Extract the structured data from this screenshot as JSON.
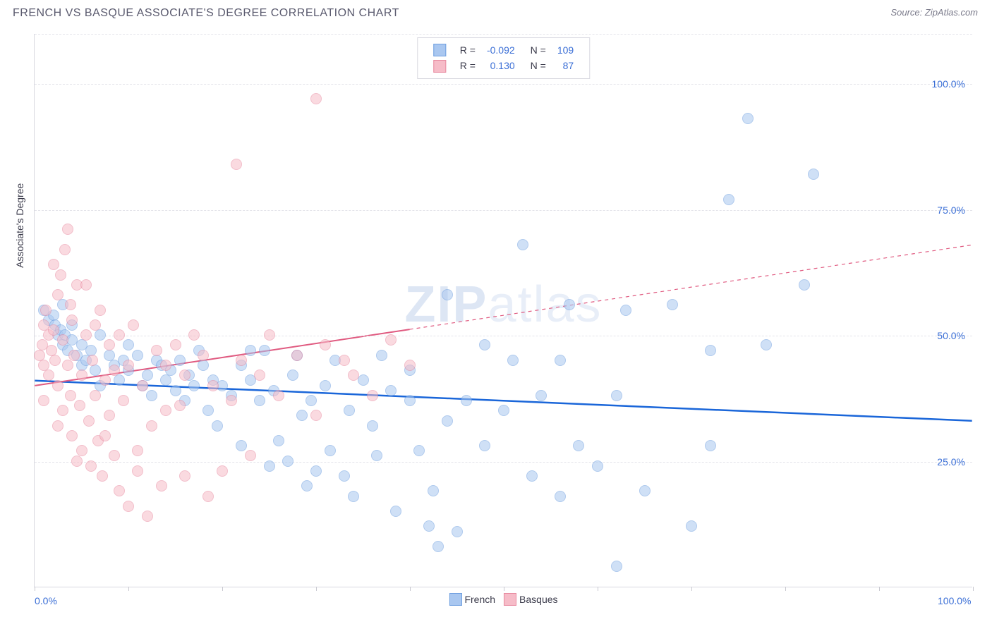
{
  "title": "FRENCH VS BASQUE ASSOCIATE'S DEGREE CORRELATION CHART",
  "source": "Source: ZipAtlas.com",
  "watermark": {
    "prefix": "ZIP",
    "suffix": "atlas"
  },
  "y_axis_title": "Associate's Degree",
  "chart": {
    "type": "scatter-with-regression",
    "xlim": [
      0,
      100
    ],
    "ylim": [
      0,
      110
    ],
    "x_ticks": [
      0,
      10,
      20,
      30,
      40,
      50,
      60,
      70,
      80,
      90,
      100
    ],
    "x_tick_labels": {
      "0": "0.0%",
      "100": "100.0%"
    },
    "y_ticks": [
      25,
      50,
      75,
      100
    ],
    "y_tick_labels": {
      "25": "25.0%",
      "50": "50.0%",
      "75": "75.0%",
      "100": "100.0%"
    },
    "background_color": "#ffffff",
    "grid_color": "#e4e4ea",
    "point_radius": 8,
    "point_opacity": 0.55,
    "series": [
      {
        "name": "French",
        "color_fill": "#a9c7f0",
        "color_stroke": "#6f9fe0",
        "trend_color": "#1a66d9",
        "trend_width": 2.5,
        "trend_dash": "none",
        "R": "-0.092",
        "N": "109",
        "trend": {
          "x1": 0,
          "y1": 41,
          "x2": 100,
          "y2": 33
        },
        "points": [
          [
            1,
            55
          ],
          [
            1.5,
            53
          ],
          [
            2,
            54
          ],
          [
            2.2,
            52
          ],
          [
            2.5,
            50
          ],
          [
            2.8,
            51
          ],
          [
            3,
            48
          ],
          [
            3,
            56
          ],
          [
            3.2,
            50
          ],
          [
            3.5,
            47
          ],
          [
            4,
            49
          ],
          [
            4,
            52
          ],
          [
            4.5,
            46
          ],
          [
            5,
            48
          ],
          [
            5,
            44
          ],
          [
            5.5,
            45
          ],
          [
            6,
            47
          ],
          [
            6.5,
            43
          ],
          [
            7,
            50
          ],
          [
            7,
            40
          ],
          [
            8,
            46
          ],
          [
            8.5,
            44
          ],
          [
            9,
            41
          ],
          [
            9.5,
            45
          ],
          [
            10,
            48
          ],
          [
            10,
            43
          ],
          [
            11,
            46
          ],
          [
            11.5,
            40
          ],
          [
            12,
            42
          ],
          [
            12.5,
            38
          ],
          [
            13,
            45
          ],
          [
            13.5,
            44
          ],
          [
            14,
            41
          ],
          [
            14.5,
            43
          ],
          [
            15,
            39
          ],
          [
            15.5,
            45
          ],
          [
            16,
            37
          ],
          [
            16.5,
            42
          ],
          [
            17,
            40
          ],
          [
            17.5,
            47
          ],
          [
            18,
            44
          ],
          [
            18.5,
            35
          ],
          [
            19,
            41
          ],
          [
            19.5,
            32
          ],
          [
            20,
            40
          ],
          [
            21,
            38
          ],
          [
            22,
            44
          ],
          [
            22,
            28
          ],
          [
            23,
            41
          ],
          [
            24,
            37
          ],
          [
            24.5,
            47
          ],
          [
            25,
            24
          ],
          [
            25.5,
            39
          ],
          [
            26,
            29
          ],
          [
            27,
            25
          ],
          [
            27.5,
            42
          ],
          [
            28,
            46
          ],
          [
            28.5,
            34
          ],
          [
            29,
            20
          ],
          [
            29.5,
            37
          ],
          [
            30,
            23
          ],
          [
            31,
            40
          ],
          [
            31.5,
            27
          ],
          [
            32,
            45
          ],
          [
            33,
            22
          ],
          [
            33.5,
            35
          ],
          [
            34,
            18
          ],
          [
            35,
            41
          ],
          [
            36,
            32
          ],
          [
            36.5,
            26
          ],
          [
            37,
            46
          ],
          [
            38,
            39
          ],
          [
            38.5,
            15
          ],
          [
            40,
            37
          ],
          [
            40,
            43
          ],
          [
            41,
            27
          ],
          [
            42,
            12
          ],
          [
            42.5,
            19
          ],
          [
            43,
            8
          ],
          [
            44,
            33
          ],
          [
            44,
            58
          ],
          [
            45,
            11
          ],
          [
            46,
            37
          ],
          [
            48,
            28
          ],
          [
            48,
            48
          ],
          [
            50,
            35
          ],
          [
            51,
            45
          ],
          [
            52,
            68
          ],
          [
            53,
            22
          ],
          [
            54,
            38
          ],
          [
            56,
            18
          ],
          [
            56,
            45
          ],
          [
            57,
            56
          ],
          [
            58,
            28
          ],
          [
            60,
            24
          ],
          [
            62,
            4
          ],
          [
            62,
            38
          ],
          [
            63,
            55
          ],
          [
            65,
            19
          ],
          [
            68,
            56
          ],
          [
            70,
            12
          ],
          [
            72,
            28
          ],
          [
            74,
            77
          ],
          [
            76,
            93
          ],
          [
            78,
            48
          ],
          [
            82,
            60
          ],
          [
            83,
            82
          ],
          [
            72,
            47
          ],
          [
            23,
            47
          ]
        ]
      },
      {
        "name": "Basques",
        "color_fill": "#f6bcc8",
        "color_stroke": "#e88aa0",
        "trend_color": "#e05a80",
        "trend_width": 2,
        "trend_dash": "5,5",
        "R": "0.130",
        "N": "87",
        "trend": {
          "x1": 0,
          "y1": 40,
          "x2": 100,
          "y2": 68
        },
        "trend_solid_until": 40,
        "points": [
          [
            0.5,
            46
          ],
          [
            0.8,
            48
          ],
          [
            1,
            52
          ],
          [
            1,
            44
          ],
          [
            1.2,
            55
          ],
          [
            1.5,
            50
          ],
          [
            1.5,
            42
          ],
          [
            1.8,
            47
          ],
          [
            2,
            51
          ],
          [
            2,
            64
          ],
          [
            2.2,
            45
          ],
          [
            2.5,
            58
          ],
          [
            2.5,
            40
          ],
          [
            2.8,
            62
          ],
          [
            3,
            49
          ],
          [
            3,
            35
          ],
          [
            3.2,
            67
          ],
          [
            3.5,
            44
          ],
          [
            3.5,
            71
          ],
          [
            3.8,
            38
          ],
          [
            4,
            53
          ],
          [
            4,
            30
          ],
          [
            4.2,
            46
          ],
          [
            4.5,
            60
          ],
          [
            4.8,
            36
          ],
          [
            5,
            42
          ],
          [
            5,
            27
          ],
          [
            5.5,
            50
          ],
          [
            5.8,
            33
          ],
          [
            6,
            24
          ],
          [
            6.2,
            45
          ],
          [
            6.5,
            38
          ],
          [
            6.8,
            29
          ],
          [
            7,
            55
          ],
          [
            7.2,
            22
          ],
          [
            7.5,
            41
          ],
          [
            8,
            34
          ],
          [
            8,
            48
          ],
          [
            8.5,
            26
          ],
          [
            9,
            19
          ],
          [
            9.5,
            37
          ],
          [
            10,
            16
          ],
          [
            10,
            44
          ],
          [
            10.5,
            52
          ],
          [
            11,
            23
          ],
          [
            11.5,
            40
          ],
          [
            12,
            14
          ],
          [
            12.5,
            32
          ],
          [
            13,
            47
          ],
          [
            13.5,
            20
          ],
          [
            14,
            44
          ],
          [
            15,
            48
          ],
          [
            15.5,
            36
          ],
          [
            16,
            22
          ],
          [
            17,
            50
          ],
          [
            18,
            46
          ],
          [
            18.5,
            18
          ],
          [
            19,
            40
          ],
          [
            20,
            23
          ],
          [
            21,
            37
          ],
          [
            21.5,
            84
          ],
          [
            22,
            45
          ],
          [
            23,
            26
          ],
          [
            24,
            42
          ],
          [
            25,
            50
          ],
          [
            26,
            38
          ],
          [
            28,
            46
          ],
          [
            30,
            34
          ],
          [
            30,
            97
          ],
          [
            31,
            48
          ],
          [
            33,
            45
          ],
          [
            34,
            42
          ],
          [
            36,
            38
          ],
          [
            38,
            49
          ],
          [
            40,
            44
          ],
          [
            1,
            37
          ],
          [
            2.5,
            32
          ],
          [
            3.8,
            56
          ],
          [
            4.5,
            25
          ],
          [
            5.5,
            60
          ],
          [
            6.5,
            52
          ],
          [
            7.5,
            30
          ],
          [
            8.5,
            43
          ],
          [
            9,
            50
          ],
          [
            11,
            27
          ],
          [
            14,
            35
          ],
          [
            16,
            42
          ]
        ]
      }
    ]
  },
  "legend_top_labels": {
    "R": "R =",
    "N": "N ="
  },
  "legend_bottom": [
    {
      "label": "French",
      "fill": "#a9c7f0",
      "stroke": "#6f9fe0"
    },
    {
      "label": "Basques",
      "fill": "#f6bcc8",
      "stroke": "#e88aa0"
    }
  ]
}
